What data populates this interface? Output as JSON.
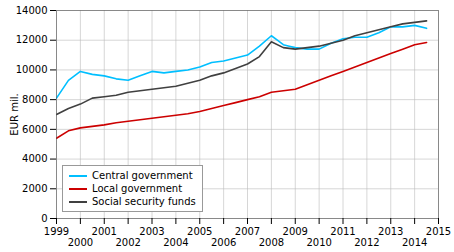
{
  "chart_data": {
    "type": "line",
    "title": "",
    "ylabel": "EUR mil.",
    "xlim": [
      1999.0,
      2015.0
    ],
    "xticks": [
      1999,
      2000,
      2001,
      2002,
      2003,
      2004,
      2005,
      2006,
      2007,
      2008,
      2009,
      2010,
      2011,
      2012,
      2013,
      2014,
      2015
    ],
    "ylim": [
      0,
      14000
    ],
    "yticks": [
      0,
      2000,
      4000,
      6000,
      8000,
      10000,
      12000,
      14000
    ],
    "grid": true,
    "legend": "lower left",
    "series": [
      {
        "name": "Central government",
        "color": "#00BFFF",
        "x": [
          1999.0,
          1999.5,
          2000.0,
          2000.5,
          2001.0,
          2001.5,
          2002.0,
          2002.5,
          2003.0,
          2003.5,
          2004.0,
          2004.5,
          2005.0,
          2005.5,
          2006.0,
          2006.5,
          2007.0,
          2007.5,
          2008.0,
          2008.25,
          2008.5,
          2008.75,
          2009.0,
          2009.5,
          2010.0,
          2010.5,
          2011.0,
          2011.5,
          2012.0,
          2012.5,
          2013.0,
          2013.5,
          2014.0,
          2014.5
        ],
        "values": [
          8100,
          9300,
          9900,
          9700,
          9600,
          9400,
          9300,
          9600,
          9900,
          9800,
          9900,
          10000,
          10200,
          10500,
          10600,
          10800,
          11000,
          11600,
          12300,
          12000,
          11700,
          11600,
          11500,
          11400,
          11400,
          11800,
          12100,
          12200,
          12200,
          12500,
          12900,
          12900,
          13000,
          12800
        ]
      },
      {
        "name": "Local government",
        "color": "#CC0000",
        "x": [
          1999.0,
          1999.5,
          2000.0,
          2000.5,
          2001.0,
          2001.5,
          2002.0,
          2002.5,
          2003.0,
          2003.5,
          2004.0,
          2004.5,
          2005.0,
          2005.5,
          2006.0,
          2006.5,
          2007.0,
          2007.5,
          2008.0,
          2008.5,
          2009.0,
          2009.5,
          2010.0,
          2010.5,
          2011.0,
          2011.5,
          2012.0,
          2012.5,
          2013.0,
          2013.5,
          2014.0,
          2014.5
        ],
        "values": [
          5400,
          5900,
          6100,
          6200,
          6300,
          6450,
          6550,
          6650,
          6750,
          6850,
          6950,
          7050,
          7200,
          7400,
          7600,
          7800,
          8000,
          8200,
          8500,
          8600,
          8700,
          9000,
          9300,
          9600,
          9900,
          10200,
          10500,
          10800,
          11100,
          11400,
          11700,
          11850
        ]
      },
      {
        "name": "Social security funds",
        "color": "#404040",
        "x": [
          1999.0,
          1999.5,
          2000.0,
          2000.5,
          2001.0,
          2001.5,
          2002.0,
          2002.5,
          2003.0,
          2003.5,
          2004.0,
          2004.5,
          2005.0,
          2005.5,
          2006.0,
          2006.5,
          2007.0,
          2007.5,
          2008.0,
          2008.5,
          2009.0,
          2009.5,
          2010.0,
          2010.5,
          2011.0,
          2011.5,
          2012.0,
          2012.5,
          2013.0,
          2013.5,
          2014.0,
          2014.5
        ],
        "values": [
          7000,
          7400,
          7700,
          8100,
          8200,
          8300,
          8500,
          8600,
          8700,
          8800,
          8900,
          9100,
          9300,
          9600,
          9800,
          10100,
          10400,
          10900,
          11900,
          11500,
          11400,
          11500,
          11600,
          11800,
          12000,
          12300,
          12500,
          12700,
          12900,
          13100,
          13200,
          13300
        ]
      }
    ]
  }
}
